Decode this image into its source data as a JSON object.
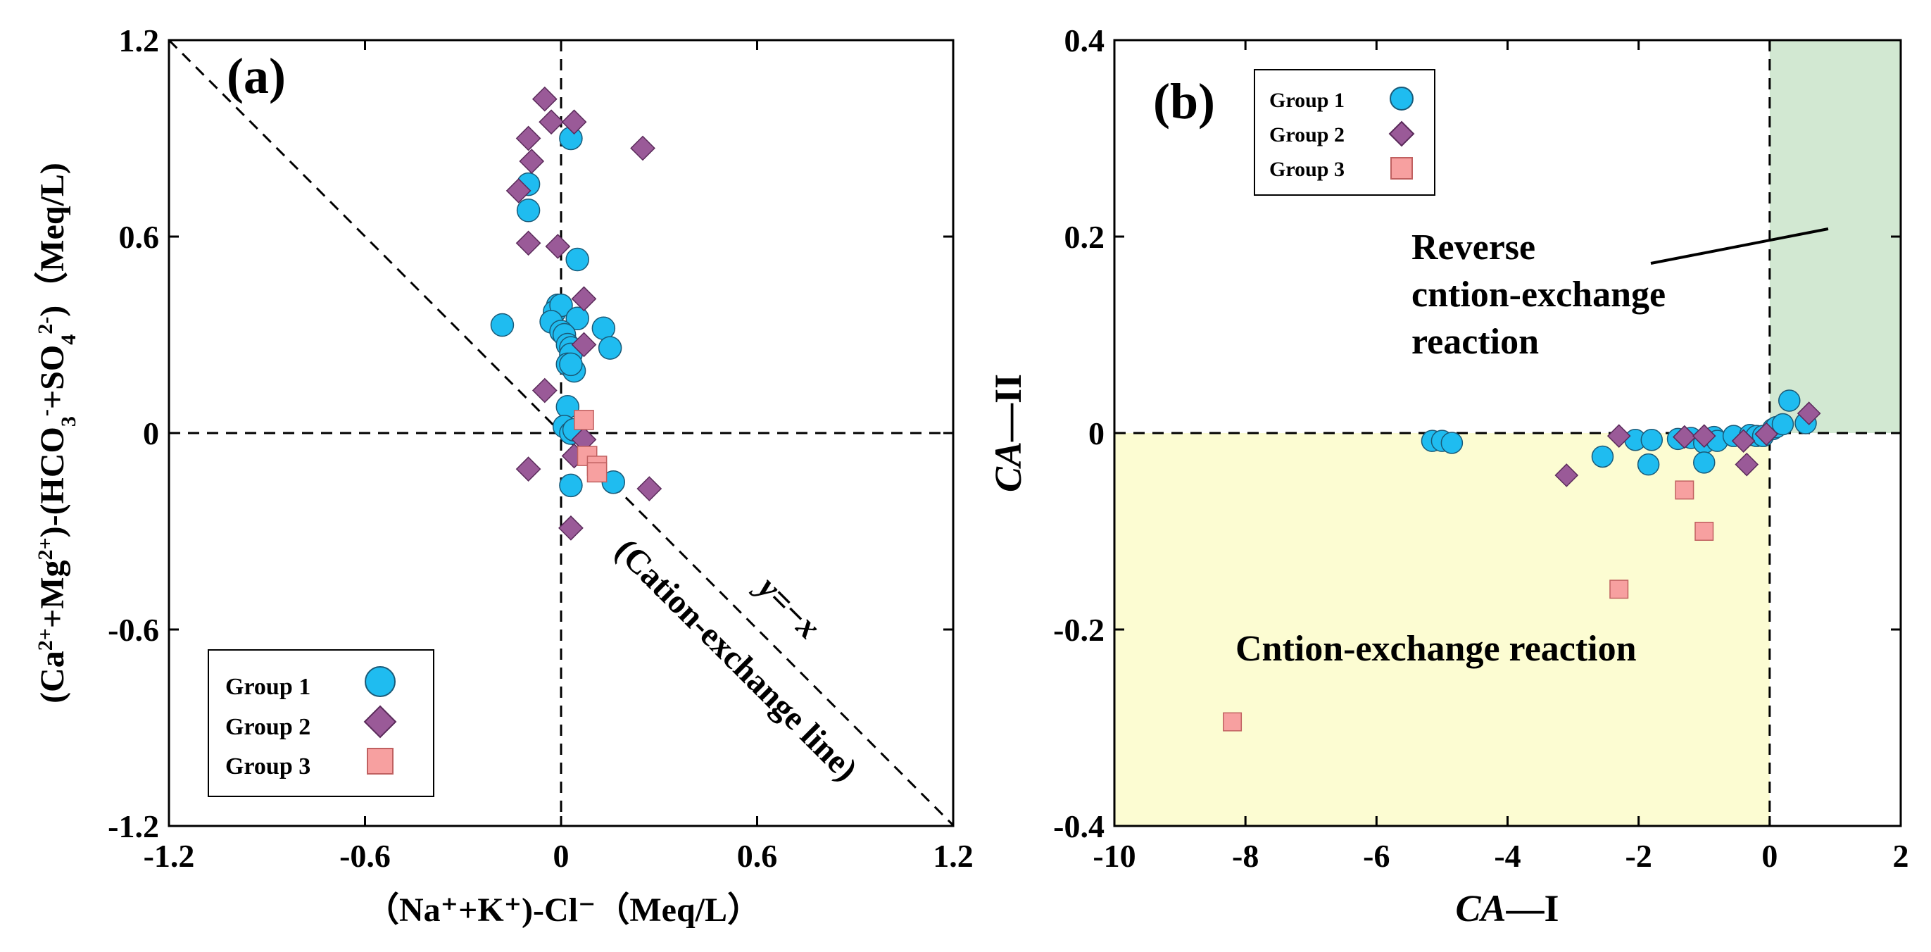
{
  "colors": {
    "group1": "#1fbcf0",
    "group2": "#9a5a98",
    "group3": "#f7a0a0",
    "yellow_region": "#fcfcd2",
    "green_region": "#d2e8d2"
  },
  "chart_data": [
    {
      "id": "a",
      "type": "scatter",
      "panel_label": "(a)",
      "xlabel": "（Na⁺+K⁺)-Cl⁻（Meq/L）",
      "ylabel": {
        "main": "(Ca²⁺+Mg²⁺)-(HCO₃⁻+SO₄²⁻)（Meq/L）",
        "p1": "(Ca",
        "sup1": "2+",
        "p2": "+Mg",
        "sup2": "2+",
        "p3": ")-(HCO",
        "sub3": "3",
        "sup3": "-",
        "p4": "+SO",
        "sub4": "4",
        "sup4": "2-",
        "p5": ")（Meq/L)"
      },
      "xlim": [
        -1.2,
        1.2
      ],
      "ylim": [
        -1.2,
        1.2
      ],
      "xticks": [
        -1.2,
        -0.6,
        0,
        0.6,
        1.2
      ],
      "yticks": [
        -1.2,
        -0.6,
        0,
        0.6,
        1.2
      ],
      "xtick_labels": [
        "-1.2",
        "-0.6",
        "0",
        "0.6",
        "1.2"
      ],
      "ytick_labels": [
        "-1.2",
        "-0.6",
        "0",
        "0.6",
        "1.2"
      ],
      "reference_line": {
        "slope": -1,
        "label_eq": "y=−x",
        "label_name": "(Cation-exchange line)"
      },
      "legend": {
        "placement": "bottom-left",
        "entries": [
          "Group 1",
          "Group 2",
          "Group 3"
        ]
      },
      "series": [
        {
          "name": "Group 1",
          "marker": "circle",
          "points": [
            [
              0.03,
              0.9
            ],
            [
              -0.1,
              0.76
            ],
            [
              -0.1,
              0.68
            ],
            [
              0.05,
              0.53
            ],
            [
              -0.18,
              0.33
            ],
            [
              -0.01,
              0.39
            ],
            [
              -0.02,
              0.37
            ],
            [
              0.0,
              0.39
            ],
            [
              -0.03,
              0.34
            ],
            [
              0.05,
              0.35
            ],
            [
              0.0,
              0.31
            ],
            [
              0.01,
              0.3
            ],
            [
              0.02,
              0.27
            ],
            [
              0.03,
              0.26
            ],
            [
              0.03,
              0.24
            ],
            [
              0.02,
              0.21
            ],
            [
              0.04,
              0.19
            ],
            [
              0.13,
              0.32
            ],
            [
              0.15,
              0.26
            ],
            [
              0.03,
              0.21
            ],
            [
              0.02,
              0.08
            ],
            [
              0.01,
              0.02
            ],
            [
              0.03,
              0.0
            ],
            [
              0.04,
              0.01
            ],
            [
              0.03,
              -0.16
            ],
            [
              0.16,
              -0.15
            ]
          ]
        },
        {
          "name": "Group 2",
          "marker": "diamond",
          "points": [
            [
              -0.05,
              1.02
            ],
            [
              -0.03,
              0.95
            ],
            [
              0.04,
              0.95
            ],
            [
              -0.1,
              0.9
            ],
            [
              -0.09,
              0.83
            ],
            [
              -0.13,
              0.74
            ],
            [
              -0.1,
              0.58
            ],
            [
              -0.01,
              0.57
            ],
            [
              0.07,
              0.41
            ],
            [
              0.25,
              0.87
            ],
            [
              0.07,
              0.27
            ],
            [
              -0.05,
              0.13
            ],
            [
              0.07,
              -0.02
            ],
            [
              0.04,
              -0.07
            ],
            [
              -0.1,
              -0.11
            ],
            [
              0.27,
              -0.17
            ],
            [
              0.03,
              -0.29
            ]
          ]
        },
        {
          "name": "Group 3",
          "marker": "square",
          "points": [
            [
              0.07,
              0.04
            ],
            [
              0.08,
              -0.07
            ],
            [
              0.11,
              -0.1
            ],
            [
              0.11,
              -0.12
            ]
          ]
        }
      ]
    },
    {
      "id": "b",
      "type": "scatter",
      "panel_label": "(b)",
      "xlabel": {
        "italic": "CA",
        "rest": "—I"
      },
      "ylabel": {
        "italic": "CA",
        "rest": "—II"
      },
      "xlim": [
        -10,
        2
      ],
      "ylim": [
        -0.4,
        0.4
      ],
      "xticks": [
        -10,
        -8,
        -6,
        -4,
        -2,
        0,
        2
      ],
      "yticks": [
        -0.4,
        -0.2,
        0,
        0.2,
        0.4
      ],
      "xtick_labels": [
        "-10",
        "-8",
        "-6",
        "-4",
        "-2",
        "0",
        "2"
      ],
      "ytick_labels": [
        "-0.4",
        "-0.2",
        "0",
        "0.2",
        "0.4"
      ],
      "regions": [
        {
          "name": "yellow",
          "x_range": [
            -10,
            0
          ],
          "y_range": [
            -0.4,
            0
          ],
          "label": "Cntion-exchange reaction"
        },
        {
          "name": "green",
          "x_range": [
            0,
            2
          ],
          "y_range": [
            0,
            0.4
          ],
          "label_lines": [
            "Reverse",
            "cntion-exchange",
            "reaction"
          ]
        }
      ],
      "legend": {
        "placement": "top-left",
        "entries": [
          "Group 1",
          "Group 2",
          "Group 3"
        ]
      },
      "series": [
        {
          "name": "Group 1",
          "marker": "circle",
          "points": [
            [
              -5.15,
              -0.008
            ],
            [
              -5.0,
              -0.008
            ],
            [
              -4.85,
              -0.01
            ],
            [
              -2.55,
              -0.024
            ],
            [
              -2.05,
              -0.007
            ],
            [
              -1.8,
              -0.007
            ],
            [
              -1.85,
              -0.032
            ],
            [
              -1.4,
              -0.006
            ],
            [
              -1.2,
              -0.005
            ],
            [
              -1.0,
              -0.01
            ],
            [
              -1.0,
              -0.03
            ],
            [
              -0.85,
              -0.004
            ],
            [
              -0.8,
              -0.008
            ],
            [
              -0.55,
              -0.003
            ],
            [
              -0.3,
              -0.002
            ],
            [
              -0.2,
              -0.003
            ],
            [
              -0.1,
              -0.003
            ],
            [
              0.05,
              0.004
            ],
            [
              0.1,
              0.006
            ],
            [
              0.2,
              0.009
            ],
            [
              0.55,
              0.01
            ],
            [
              0.3,
              0.033
            ]
          ]
        },
        {
          "name": "Group 2",
          "marker": "diamond",
          "points": [
            [
              -3.1,
              -0.043
            ],
            [
              -2.3,
              -0.003
            ],
            [
              -1.3,
              -0.004
            ],
            [
              -1.0,
              -0.003
            ],
            [
              -0.4,
              -0.008
            ],
            [
              -0.35,
              -0.032
            ],
            [
              -0.05,
              -0.001
            ],
            [
              0.6,
              0.02
            ]
          ]
        },
        {
          "name": "Group 3",
          "marker": "square",
          "points": [
            [
              -1.3,
              -0.058
            ],
            [
              -1.0,
              -0.1
            ],
            [
              -2.3,
              -0.159
            ],
            [
              -8.2,
              -0.294
            ]
          ]
        }
      ]
    }
  ]
}
